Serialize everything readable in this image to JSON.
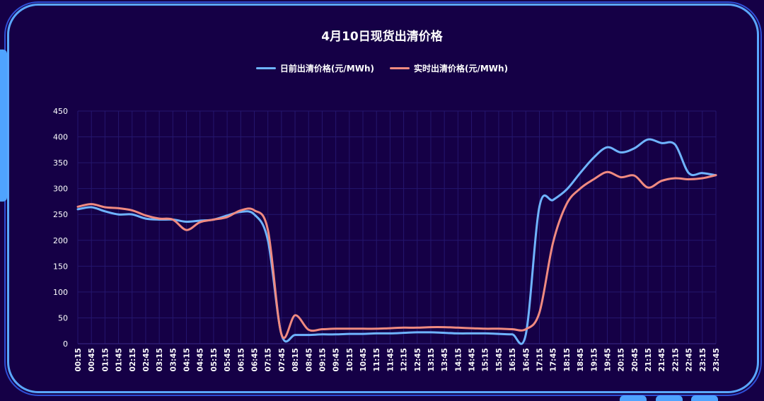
{
  "colors": {
    "background": "#150046",
    "frame": "#5aa7ff",
    "grid": "#25166e",
    "series_day_ahead": "#6fb4ff",
    "series_realtime": "#f08a80"
  },
  "chart_data": {
    "type": "line",
    "title": "4月10日现货出清价格",
    "xlabel": "",
    "ylabel": "",
    "ylim": [
      0,
      450
    ],
    "yticks": [
      0,
      50,
      100,
      150,
      200,
      250,
      300,
      350,
      400,
      450
    ],
    "grid": true,
    "legend_position": "top-center",
    "x": [
      "00:15",
      "00:45",
      "01:15",
      "01:45",
      "02:15",
      "02:45",
      "03:15",
      "03:45",
      "04:15",
      "04:45",
      "05:15",
      "05:45",
      "06:15",
      "06:45",
      "07:15",
      "07:45",
      "08:15",
      "08:45",
      "09:15",
      "09:45",
      "10:15",
      "10:45",
      "11:15",
      "11:45",
      "12:15",
      "12:45",
      "13:15",
      "13:45",
      "14:15",
      "14:45",
      "15:15",
      "15:45",
      "16:15",
      "16:45",
      "17:15",
      "17:45",
      "18:15",
      "18:45",
      "19:15",
      "19:45",
      "20:15",
      "20:45",
      "21:15",
      "21:45",
      "22:15",
      "22:45",
      "23:15",
      "23:45"
    ],
    "series": [
      {
        "name": "日前出清价格(元/MWh)",
        "values": [
          260,
          264,
          256,
          250,
          250,
          242,
          240,
          240,
          236,
          238,
          240,
          248,
          255,
          250,
          200,
          18,
          17,
          17,
          18,
          18,
          19,
          19,
          20,
          20,
          21,
          22,
          22,
          21,
          20,
          20,
          20,
          19,
          18,
          18,
          265,
          278,
          298,
          330,
          360,
          380,
          370,
          378,
          395,
          388,
          385,
          330,
          330,
          326
        ]
      },
      {
        "name": "实时出清价格(元/MWh)",
        "values": [
          265,
          270,
          264,
          262,
          258,
          248,
          242,
          240,
          220,
          235,
          240,
          245,
          258,
          258,
          220,
          18,
          55,
          27,
          28,
          29,
          29,
          29,
          29,
          30,
          31,
          31,
          32,
          32,
          31,
          30,
          29,
          29,
          28,
          28,
          60,
          195,
          270,
          300,
          318,
          332,
          322,
          325,
          302,
          315,
          320,
          318,
          320,
          326
        ]
      }
    ]
  }
}
